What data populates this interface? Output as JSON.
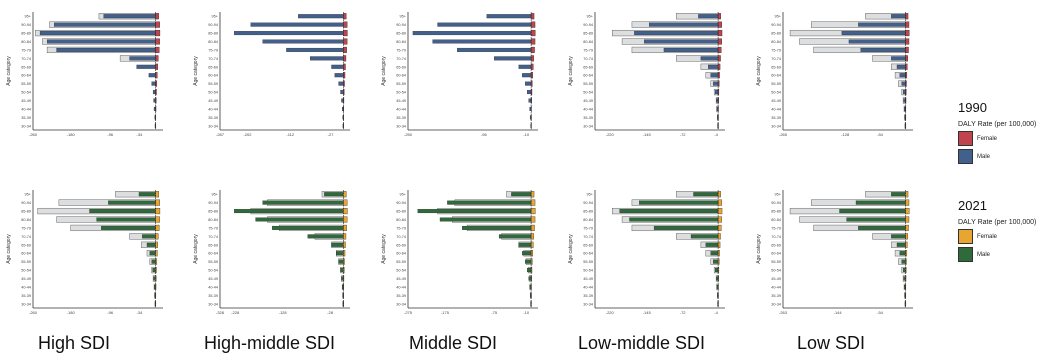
{
  "group_labels": [
    "High SDI",
    "High-middle SDI",
    "Middle SDI",
    "Low-middle SDI",
    "Low SDI"
  ],
  "legend": [
    {
      "year": "1990",
      "title": "DALY Rate (per 100,000)",
      "items": [
        {
          "label": "Female",
          "color": "#c0444b"
        },
        {
          "label": "Male",
          "color": "#41608c"
        }
      ]
    },
    {
      "year": "2021",
      "title": "DALY Rate (per 100,000)",
      "items": [
        {
          "label": "Female",
          "color": "#e8a531"
        },
        {
          "label": "Male",
          "color": "#2f6a3a"
        }
      ]
    }
  ],
  "chart_data": [
    {
      "type": "bar",
      "year": "1990",
      "group": "High SDI",
      "ylabel": "Age category",
      "categories": [
        "30-34",
        "35-39",
        "40-44",
        "45-49",
        "50-54",
        "55-59",
        "60-64",
        "65-69",
        "70-74",
        "75-79",
        "80-84",
        "85-89",
        "90-94",
        "95+"
      ],
      "xlim": [
        -260,
        16
      ],
      "x_ticks": [
        -260,
        -180,
        -96,
        -34
      ],
      "series": [
        {
          "name": "Female",
          "color": "#c0444b",
          "values": [
            0.5,
            0.8,
            1.2,
            1.6,
            2.2,
            3,
            4,
            5,
            6,
            8,
            9,
            9.5,
            9,
            7
          ]
        },
        {
          "name": "Male",
          "color": "#41608c",
          "values": [
            -1,
            -1.5,
            -3,
            -4,
            -5,
            -8,
            -14,
            -40,
            -55,
            -210,
            -230,
            -245,
            -215,
            -110
          ]
        },
        {
          "name": "overlay",
          "color": "#dcdee0",
          "values": [
            0,
            0,
            0,
            0,
            0,
            0,
            0,
            0,
            -75,
            -230,
            -240,
            -255,
            -225,
            -120
          ]
        }
      ]
    },
    {
      "type": "bar",
      "year": "1990",
      "group": "High-middle SDI",
      "ylabel": "Age category",
      "categories": [
        "30-34",
        "35-39",
        "40-44",
        "45-49",
        "50-54",
        "55-59",
        "60-64",
        "65-69",
        "70-74",
        "75-79",
        "80-84",
        "85-89",
        "90-94",
        "95+"
      ],
      "xlim": [
        -260,
        14
      ],
      "x_ticks": [
        -287,
        -202,
        -112,
        -27
      ],
      "series": [
        {
          "name": "Female",
          "color": "#c0444b",
          "values": [
            0.3,
            0.5,
            0.8,
            1.2,
            1.8,
            2.5,
            3.5,
            4.5,
            5.5,
            7,
            8,
            8.5,
            8,
            6
          ]
        },
        {
          "name": "Male",
          "color": "#41608c",
          "values": [
            -1,
            -1.5,
            -2.5,
            -4,
            -6,
            -10,
            -18,
            -25,
            -70,
            -120,
            -170,
            -230,
            -195,
            -95
          ]
        }
      ]
    },
    {
      "type": "bar",
      "year": "1990",
      "group": "Middle SDI",
      "ylabel": "Age category",
      "categories": [
        "30-34",
        "35-39",
        "40-44",
        "45-49",
        "50-54",
        "55-59",
        "60-64",
        "65-69",
        "70-74",
        "75-79",
        "80-84",
        "85-89",
        "90-94",
        "95+"
      ],
      "xlim": [
        -250,
        14
      ],
      "x_ticks": [
        -250,
        -96,
        -10
      ],
      "series": [
        {
          "name": "Female",
          "color": "#c0444b",
          "values": [
            0.3,
            0.5,
            0.8,
            1.2,
            1.8,
            2.5,
            3.5,
            4.5,
            5.5,
            7,
            8,
            8.5,
            8,
            6
          ]
        },
        {
          "name": "Male",
          "color": "#41608c",
          "values": [
            -1,
            -2,
            -3,
            -5,
            -8,
            -12,
            -18,
            -25,
            -75,
            -150,
            -200,
            -240,
            -190,
            -90
          ]
        }
      ]
    },
    {
      "type": "bar",
      "year": "1990",
      "group": "Low-middle SDI",
      "ylabel": "Age category",
      "categories": [
        "30-34",
        "35-39",
        "40-44",
        "45-49",
        "50-54",
        "55-59",
        "60-64",
        "65-69",
        "70-74",
        "75-79",
        "80-84",
        "85-89",
        "90-94",
        "95+"
      ],
      "xlim": [
        -250,
        14
      ],
      "x_ticks": [
        -220,
        -145,
        -72,
        -4
      ],
      "series": [
        {
          "name": "Female",
          "color": "#c0444b",
          "values": [
            0.3,
            0.5,
            0.8,
            1.2,
            1.6,
            2.2,
            3,
            4,
            5,
            6.5,
            7.5,
            8,
            7.5,
            5.5
          ]
        },
        {
          "name": "Male",
          "color": "#41608c",
          "values": [
            -1,
            -1.5,
            -2.5,
            -3.5,
            -6,
            -10,
            -15,
            -20,
            -35,
            -110,
            -150,
            -170,
            -140,
            -40
          ]
        },
        {
          "name": "overlay",
          "color": "#dcdee0",
          "values": [
            -1,
            -1.5,
            -3,
            -4,
            -8,
            -15,
            -25,
            -35,
            -85,
            -175,
            -195,
            -215,
            -175,
            -85
          ]
        }
      ]
    },
    {
      "type": "bar",
      "year": "1990",
      "group": "Low SDI",
      "ylabel": "Age category",
      "categories": [
        "30-34",
        "35-39",
        "40-44",
        "45-49",
        "50-54",
        "55-59",
        "60-64",
        "65-69",
        "70-74",
        "75-79",
        "80-84",
        "85-89",
        "90-94",
        "95+"
      ],
      "xlim": [
        -260,
        16
      ],
      "x_ticks": [
        -265,
        -128,
        -54
      ],
      "series": [
        {
          "name": "Female",
          "color": "#c0444b",
          "values": [
            0.3,
            0.5,
            0.8,
            1.2,
            1.6,
            2.2,
            3,
            4,
            5,
            6.5,
            7.5,
            8,
            7.5,
            5.5
          ]
        },
        {
          "name": "Male",
          "color": "#41608c",
          "values": [
            -1,
            -1.5,
            -2.5,
            -3.5,
            -5,
            -8,
            -12,
            -18,
            -30,
            -95,
            -120,
            -135,
            -100,
            -30
          ]
        },
        {
          "name": "overlay",
          "color": "#dcdee0",
          "values": [
            -1,
            -2,
            -3,
            -5,
            -8,
            -15,
            -22,
            -30,
            -70,
            -195,
            -225,
            -245,
            -200,
            -85
          ]
        }
      ]
    },
    {
      "type": "bar",
      "year": "2021",
      "group": "High SDI",
      "ylabel": "Age category",
      "categories": [
        "30-34",
        "35-39",
        "40-44",
        "45-49",
        "50-54",
        "55-59",
        "60-64",
        "65-69",
        "70-74",
        "75-79",
        "80-84",
        "85-89",
        "90-94",
        "95+"
      ],
      "xlim": [
        -260,
        16
      ],
      "x_ticks": [
        -260,
        -180,
        -96,
        -34
      ],
      "series": [
        {
          "name": "Female",
          "color": "#e8a531",
          "values": [
            0.5,
            0.8,
            1.2,
            1.6,
            2.2,
            3,
            4,
            5,
            6,
            8,
            9,
            9.5,
            9,
            7
          ]
        },
        {
          "name": "Male",
          "color": "#2f6a3a",
          "values": [
            -1,
            -1.5,
            -2.5,
            -4,
            -6,
            -8,
            -12,
            -18,
            -28,
            -115,
            -125,
            -140,
            -100,
            -35
          ]
        },
        {
          "name": "overlay",
          "color": "#dcdee0",
          "values": [
            -1,
            -2,
            -3,
            -5,
            -8,
            -12,
            -18,
            -30,
            -55,
            -180,
            -210,
            -250,
            -205,
            -85
          ]
        }
      ]
    },
    {
      "type": "bar",
      "year": "2021",
      "group": "High-middle SDI",
      "ylabel": "Age category",
      "categories": [
        "30-34",
        "35-39",
        "40-44",
        "45-49",
        "50-54",
        "55-59",
        "60-64",
        "65-69",
        "70-74",
        "75-79",
        "80-84",
        "85-89",
        "90-94",
        "95+"
      ],
      "xlim": [
        -260,
        14
      ],
      "x_ticks": [
        -328,
        -228,
        -128,
        -28
      ],
      "series": [
        {
          "name": "Female",
          "color": "#e8a531",
          "values": [
            0.3,
            0.5,
            0.8,
            1.2,
            1.8,
            2.5,
            3.5,
            4.5,
            5.5,
            7,
            8,
            8.5,
            8,
            6
          ]
        },
        {
          "name": "Male",
          "color": "#2f6a3a",
          "values": [
            -1,
            -1.5,
            -2.5,
            -4,
            -6,
            -10,
            -15,
            -25,
            -75,
            -150,
            -185,
            -230,
            -170,
            -40
          ]
        },
        {
          "name": "overlay",
          "color": "#dcdee0",
          "values": [
            -1,
            -1.5,
            -2.5,
            -4,
            -6,
            -10,
            -15,
            -25,
            -60,
            -135,
            -160,
            -195,
            -160,
            -45
          ]
        }
      ]
    },
    {
      "type": "bar",
      "year": "2021",
      "group": "Middle SDI",
      "ylabel": "Age category",
      "categories": [
        "30-34",
        "35-39",
        "40-44",
        "45-49",
        "50-54",
        "55-59",
        "60-64",
        "65-69",
        "70-74",
        "75-79",
        "80-84",
        "85-89",
        "90-94",
        "95+"
      ],
      "xlim": [
        -250,
        14
      ],
      "x_ticks": [
        -275,
        -175,
        -75,
        -10
      ],
      "series": [
        {
          "name": "Female",
          "color": "#e8a531",
          "values": [
            0.3,
            0.5,
            0.8,
            1.2,
            1.8,
            2.5,
            3.5,
            4.5,
            5.5,
            7,
            8,
            8.5,
            8,
            6
          ]
        },
        {
          "name": "Male",
          "color": "#2f6a3a",
          "values": [
            -1,
            -2,
            -3,
            -5,
            -8,
            -12,
            -18,
            -25,
            -65,
            -140,
            -185,
            -230,
            -170,
            -40
          ]
        },
        {
          "name": "overlay",
          "color": "#dcdee0",
          "values": [
            -1,
            -1.5,
            -2.5,
            -4,
            -6,
            -10,
            -15,
            -25,
            -60,
            -130,
            -160,
            -190,
            -155,
            -50
          ]
        }
      ]
    },
    {
      "type": "bar",
      "year": "2021",
      "group": "Low-middle SDI",
      "ylabel": "Age category",
      "categories": [
        "30-34",
        "35-39",
        "40-44",
        "45-49",
        "50-54",
        "55-59",
        "60-64",
        "65-69",
        "70-74",
        "75-79",
        "80-84",
        "85-89",
        "90-94",
        "95+"
      ],
      "xlim": [
        -250,
        14
      ],
      "x_ticks": [
        -220,
        -145,
        -72,
        -4
      ],
      "series": [
        {
          "name": "Female",
          "color": "#e8a531",
          "values": [
            0.3,
            0.5,
            0.8,
            1.2,
            1.6,
            2.2,
            3,
            4,
            5,
            6.5,
            7.5,
            8,
            7.5,
            5.5
          ]
        },
        {
          "name": "Male",
          "color": "#2f6a3a",
          "values": [
            -1,
            -1.5,
            -2.5,
            -3.5,
            -6,
            -10,
            -15,
            -25,
            -55,
            -130,
            -180,
            -200,
            -160,
            -50
          ]
        },
        {
          "name": "overlay",
          "color": "#dcdee0",
          "values": [
            -1,
            -1.5,
            -3,
            -4,
            -8,
            -15,
            -25,
            -35,
            -85,
            -175,
            -195,
            -215,
            -175,
            -85
          ]
        }
      ]
    },
    {
      "type": "bar",
      "year": "2021",
      "group": "Low SDI",
      "ylabel": "Age category",
      "categories": [
        "30-34",
        "35-39",
        "40-44",
        "45-49",
        "50-54",
        "55-59",
        "60-64",
        "65-69",
        "70-74",
        "75-79",
        "80-84",
        "85-89",
        "90-94",
        "95+"
      ],
      "xlim": [
        -260,
        16
      ],
      "x_ticks": [
        -263,
        -144,
        -54
      ],
      "series": [
        {
          "name": "Female",
          "color": "#e8a531",
          "values": [
            0.3,
            0.5,
            0.8,
            1.2,
            1.6,
            2.2,
            3,
            4,
            5,
            6.5,
            7.5,
            8,
            7.5,
            5.5
          ]
        },
        {
          "name": "Male",
          "color": "#2f6a3a",
          "values": [
            -1,
            -1.5,
            -2.5,
            -3.5,
            -5,
            -8,
            -12,
            -18,
            -30,
            -100,
            -125,
            -140,
            -105,
            -30
          ]
        },
        {
          "name": "overlay",
          "color": "#dcdee0",
          "values": [
            -1,
            -2,
            -3,
            -5,
            -8,
            -15,
            -22,
            -30,
            -70,
            -195,
            -225,
            -245,
            -200,
            -85
          ]
        }
      ]
    }
  ]
}
